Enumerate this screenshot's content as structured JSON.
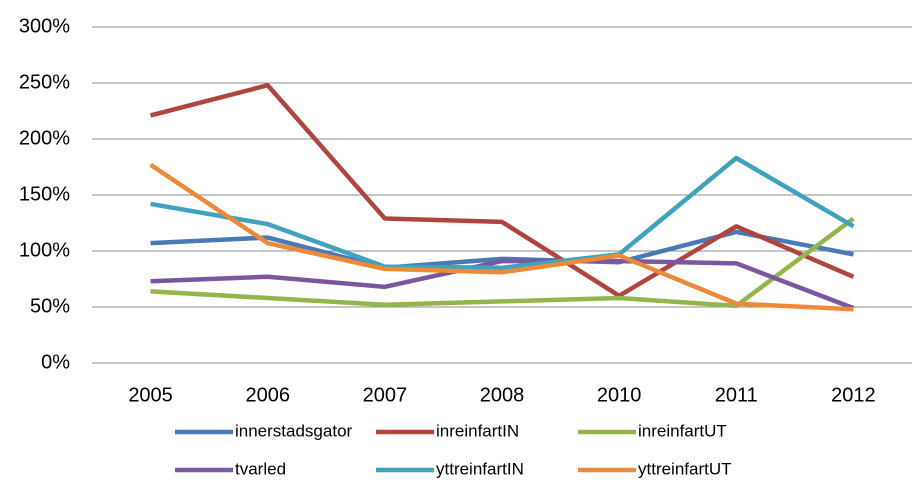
{
  "chart_data": {
    "type": "line",
    "categories": [
      "2005",
      "2006",
      "2007",
      "2008",
      "2010",
      "2011",
      "2012"
    ],
    "ylim": [
      0,
      300
    ],
    "yticks": [
      {
        "value": 0,
        "label": "0%"
      },
      {
        "value": 50,
        "label": "50%"
      },
      {
        "value": 100,
        "label": "100%"
      },
      {
        "value": 150,
        "label": "150%"
      },
      {
        "value": 200,
        "label": "200%"
      },
      {
        "value": 250,
        "label": "250%"
      },
      {
        "value": 300,
        "label": "300%"
      }
    ],
    "grid": true,
    "legend": "bottom",
    "series": [
      {
        "name": "innerstadsgator",
        "color": "#4a7ab5",
        "values": [
          107,
          112,
          85,
          93,
          90,
          117,
          97
        ]
      },
      {
        "name": "inreinfartIN",
        "color": "#b0443f",
        "values": [
          221,
          248,
          129,
          126,
          60,
          122,
          77
        ]
      },
      {
        "name": "inreinfartUT",
        "color": "#93b54b",
        "values": [
          64,
          58,
          52,
          55,
          58,
          51,
          129
        ]
      },
      {
        "name": "tvarled",
        "color": "#7a57a0",
        "values": [
          73,
          77,
          68,
          91,
          91,
          89,
          49
        ]
      },
      {
        "name": "yttreinfartIN",
        "color": "#3fa2be",
        "values": [
          142,
          124,
          86,
          85,
          97,
          183,
          122
        ]
      },
      {
        "name": "yttreinfartUT",
        "color": "#ed8a3a",
        "values": [
          177,
          107,
          84,
          81,
          96,
          53,
          48
        ]
      }
    ]
  }
}
